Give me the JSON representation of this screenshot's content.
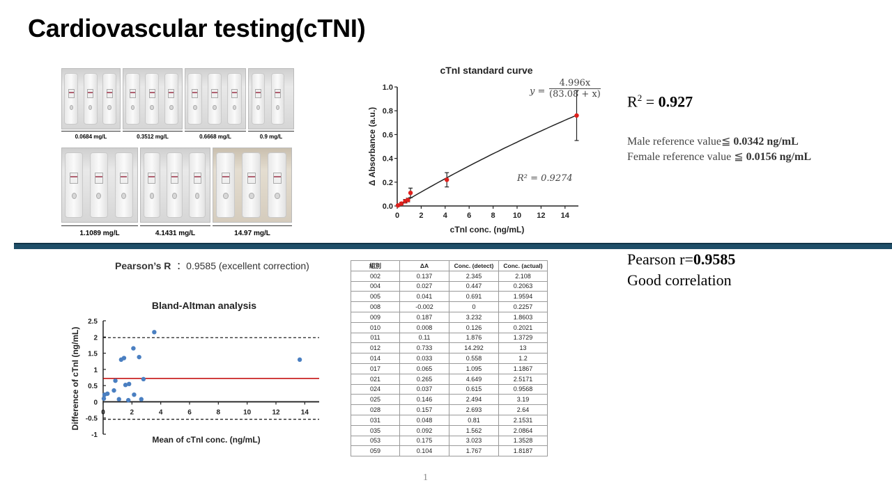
{
  "title": "Cardiovascular testing(cTNI)",
  "photos": {
    "top_labels": [
      "0.0684  mg/L",
      "0.3512  mg/L",
      "0.6668  mg/L",
      "0.9  mg/L"
    ],
    "bottom_labels": [
      "1.1089  mg/L",
      "4.1431  mg/L",
      "14.97  mg/L"
    ]
  },
  "right_panel": {
    "r2_prefix": "R",
    "r2_sup": "2",
    "r2_eq": " = ",
    "r2_value": "0.927",
    "male_label": "Male reference value≦ ",
    "male_value": "0.0342 ng/mL",
    "female_label": "Female reference value ≦ ",
    "female_value": "0.0156 ng/mL",
    "pearson_prefix": "Pearson r=",
    "pearson_value": "0.9585",
    "correlation_text": "Good correlation"
  },
  "std_equation": {
    "y_label": "y =",
    "numerator": "4.996x",
    "denominator": "(83.08 + x)",
    "r2_text": "R² = 0.9274"
  },
  "pearson_label": {
    "bold": "Pearson’s R",
    "rest": "  ：0.9585 (excellent correction)"
  },
  "table": {
    "headers": [
      "組別",
      "ΔA",
      "Conc. (detect)",
      "Conc. (actual)"
    ],
    "rows": [
      [
        "002",
        "0.137",
        "2.345",
        "2.108"
      ],
      [
        "004",
        "0.027",
        "0.447",
        "0.2063"
      ],
      [
        "005",
        "0.041",
        "0.691",
        "1.9594"
      ],
      [
        "008",
        "-0.002",
        "0",
        "0.2257"
      ],
      [
        "009",
        "0.187",
        "3.232",
        "1.8603"
      ],
      [
        "010",
        "0.008",
        "0.126",
        "0.2021"
      ],
      [
        "011",
        "0.11",
        "1.876",
        "1.3729"
      ],
      [
        "012",
        "0.733",
        "14.292",
        "13"
      ],
      [
        "014",
        "0.033",
        "0.558",
        "1.2"
      ],
      [
        "017",
        "0.065",
        "1.095",
        "1.1867"
      ],
      [
        "021",
        "0.265",
        "4.649",
        "2.5171"
      ],
      [
        "024",
        "0.037",
        "0.615",
        "0.9568"
      ],
      [
        "025",
        "0.146",
        "2.494",
        "3.19"
      ],
      [
        "028",
        "0.157",
        "2.693",
        "2.64"
      ],
      [
        "031",
        "0.048",
        "0.81",
        "2.1531"
      ],
      [
        "035",
        "0.092",
        "1.562",
        "2.0864"
      ],
      [
        "053",
        "0.175",
        "3.023",
        "1.3528"
      ],
      [
        "059",
        "0.104",
        "1.767",
        "1.8187"
      ]
    ]
  },
  "page_number": "1",
  "colors": {
    "divider": "#1f4e68",
    "std_points": "#e0201c",
    "ba_points": "#4a7fc1",
    "ba_mean_line": "#c00000"
  },
  "chart_data": [
    {
      "type": "scatter",
      "title": "cTnI standard curve",
      "xlabel": "cTnI conc. (ng/mL)",
      "ylabel": "Δ Absorbance (a.u.)",
      "xlim": [
        0,
        15
      ],
      "ylim": [
        0,
        1.0
      ],
      "xticks": [
        "0",
        "2",
        "4",
        "6",
        "8",
        "10",
        "12",
        "14"
      ],
      "yticks": [
        "0.0",
        "0.2",
        "0.4",
        "0.6",
        "0.8",
        "1.0"
      ],
      "points": [
        {
          "x": 0.07,
          "y": 0.005,
          "err": 0.008
        },
        {
          "x": 0.35,
          "y": 0.02,
          "err": 0.01
        },
        {
          "x": 0.67,
          "y": 0.04,
          "err": 0.015
        },
        {
          "x": 0.9,
          "y": 0.05,
          "err": 0.015
        },
        {
          "x": 1.11,
          "y": 0.11,
          "err": 0.04
        },
        {
          "x": 4.14,
          "y": 0.22,
          "err": 0.06
        },
        {
          "x": 14.97,
          "y": 0.76,
          "err": 0.21
        }
      ],
      "fit": {
        "a": 4.996,
        "b": 83.08
      }
    },
    {
      "type": "scatter",
      "title": "Bland-Altman analysis",
      "xlabel": "Mean of cTnI conc. (ng/mL)",
      "ylabel": "Difference of cTnI (ng/mL)",
      "xlim": [
        0,
        15
      ],
      "ylim": [
        -1,
        2.5
      ],
      "xticks": [
        "0",
        "2",
        "4",
        "6",
        "8",
        "10",
        "12",
        "14"
      ],
      "yticks": [
        "2.5",
        "2",
        "1.5",
        "1",
        "0.5",
        "0",
        "-0.5",
        "-1"
      ],
      "mean_diff": 0.72,
      "loa_upper": 1.98,
      "loa_lower": -0.54,
      "points": [
        {
          "x": 0.05,
          "y": 0.1
        },
        {
          "x": 0.1,
          "y": 0.22
        },
        {
          "x": 0.3,
          "y": 0.25
        },
        {
          "x": 0.75,
          "y": 0.35
        },
        {
          "x": 0.85,
          "y": 0.65
        },
        {
          "x": 1.1,
          "y": 0.08
        },
        {
          "x": 1.25,
          "y": 1.3
        },
        {
          "x": 1.45,
          "y": 1.35
        },
        {
          "x": 1.55,
          "y": 0.52
        },
        {
          "x": 1.75,
          "y": 0.05
        },
        {
          "x": 1.8,
          "y": 0.55
        },
        {
          "x": 2.1,
          "y": 1.65
        },
        {
          "x": 2.15,
          "y": 0.22
        },
        {
          "x": 2.5,
          "y": 1.38
        },
        {
          "x": 2.65,
          "y": 0.08
        },
        {
          "x": 2.8,
          "y": 0.7
        },
        {
          "x": 3.55,
          "y": 2.15
        },
        {
          "x": 13.65,
          "y": 1.3
        }
      ]
    }
  ]
}
